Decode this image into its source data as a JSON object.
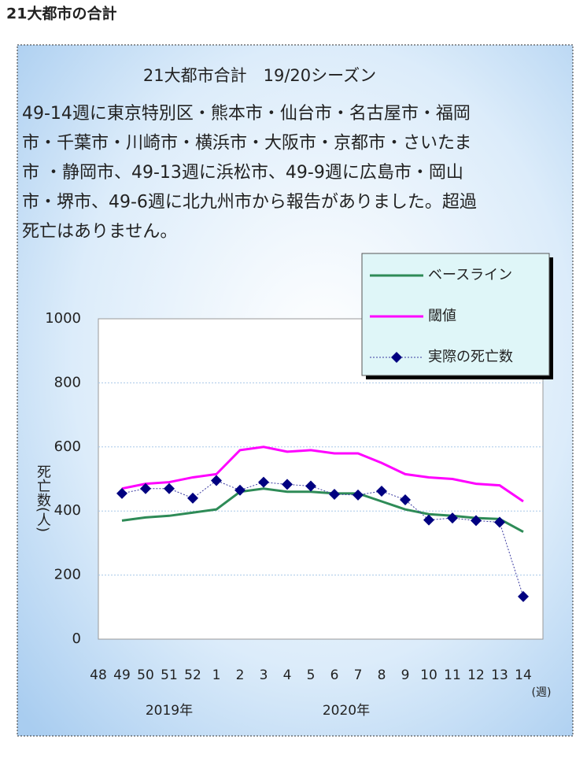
{
  "header": "21大都市の合計",
  "chart_data": {
    "type": "line",
    "title": "21大都市合計　19/20シーズン",
    "description": [
      "49-14週に東京特別区・熊本市・仙台市・名古屋市・福岡",
      "市・千葉市・川崎市・横浜市・大阪市・京都市・さいたま",
      "市 ・静岡市、49-13週に浜松市、49-9週に広島市・岡山",
      "市・堺市、49-6週に北九州市から報告がありました。超過",
      "死亡はありません。"
    ],
    "y_label": "死亡数(人)",
    "x_unit": "(週)",
    "annotations": [
      "2019年",
      "2020年"
    ],
    "categories": [
      "48",
      "49",
      "50",
      "51",
      "52",
      "1",
      "2",
      "3",
      "4",
      "5",
      "6",
      "7",
      "8",
      "9",
      "10",
      "11",
      "12",
      "13",
      "14"
    ],
    "series": [
      {
        "name": "ベースライン",
        "color": "#2e8b57",
        "values": [
          null,
          370,
          380,
          385,
          395,
          405,
          460,
          470,
          460,
          460,
          455,
          455,
          430,
          405,
          390,
          385,
          378,
          375,
          335
        ]
      },
      {
        "name": "閾値",
        "color": "#ff00ff",
        "values": [
          null,
          470,
          485,
          490,
          505,
          515,
          590,
          600,
          585,
          590,
          580,
          580,
          550,
          515,
          505,
          500,
          485,
          480,
          430
        ]
      },
      {
        "name": "実際の死亡数",
        "color": "#000080",
        "dashed": true,
        "marker": "diamond",
        "values": [
          null,
          455,
          470,
          470,
          440,
          495,
          465,
          490,
          483,
          478,
          452,
          450,
          462,
          435,
          372,
          378,
          370,
          365,
          133
        ]
      }
    ],
    "ylim": [
      0,
      1000
    ],
    "yticks": [
      0,
      200,
      400,
      600,
      800,
      1000
    ],
    "grid": true,
    "legend": "upper right"
  }
}
